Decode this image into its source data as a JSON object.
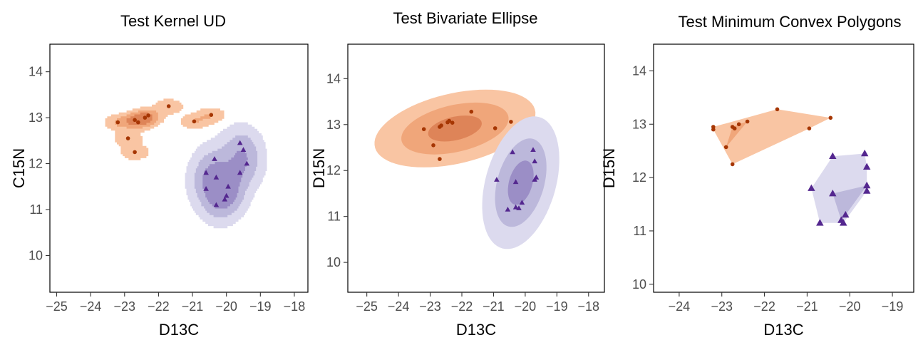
{
  "colors": {
    "orange_light": "#f9c5a3",
    "orange_mid": "#f0a67a",
    "orange_dark": "#de8458",
    "orange_point": "#a63603",
    "purple_light": "#dcdaee",
    "purple_mid": "#bcb8db",
    "purple_dark": "#9b8ec6",
    "purple_point": "#54278f"
  },
  "chart_data": [
    {
      "type": "scatter",
      "title": "Test Kernel UD",
      "xlabel": "D13C",
      "ylabel": "C15N",
      "xlim": [
        -25.2,
        -17.6
      ],
      "ylim": [
        9.2,
        14.6
      ],
      "xticks": [
        -25,
        -24,
        -23,
        -22,
        -21,
        -20,
        -19,
        -18
      ],
      "xtick_labels": [
        "−25",
        "−24",
        "−23",
        "−22",
        "−21",
        "−20",
        "−19",
        "−18"
      ],
      "yticks": [
        10,
        11,
        12,
        13,
        14
      ],
      "ytick_labels": [
        "10",
        "11",
        "12",
        "13",
        "14"
      ],
      "overlay": "kernel",
      "series": [
        {
          "marker": "circle",
          "color": "orange",
          "points": [
            [
              -23.2,
              12.9
            ],
            [
              -22.7,
              12.95
            ],
            [
              -22.6,
              12.9
            ],
            [
              -22.4,
              13.0
            ],
            [
              -22.3,
              13.05
            ],
            [
              -21.7,
              13.25
            ],
            [
              -20.95,
              12.92
            ],
            [
              -20.45,
              13.06
            ],
            [
              -22.9,
              12.55
            ],
            [
              -22.7,
              12.25
            ]
          ]
        },
        {
          "marker": "triangle",
          "color": "purple",
          "points": [
            [
              -20.6,
              11.8
            ],
            [
              -20.3,
              11.1
            ],
            [
              -20.35,
              12.1
            ],
            [
              -20.3,
              11.7
            ],
            [
              -19.6,
              12.45
            ],
            [
              -19.5,
              12.3
            ],
            [
              -19.4,
              12.0
            ],
            [
              -19.6,
              11.8
            ],
            [
              -19.95,
              11.5
            ],
            [
              -20.0,
              11.3
            ],
            [
              -20.05,
              11.22
            ],
            [
              -20.6,
              11.45
            ]
          ]
        }
      ]
    },
    {
      "type": "scatter",
      "title": "Test Bivariate Ellipse",
      "xlabel": "D13C",
      "ylabel": "D15N",
      "xlim": [
        -25.6,
        -17.5
      ],
      "ylim": [
        9.35,
        14.75
      ],
      "xticks": [
        -25,
        -24,
        -23,
        -22,
        -21,
        -20,
        -19,
        -18
      ],
      "xtick_labels": [
        "−25",
        "−24",
        "−23",
        "−22",
        "−21",
        "−20",
        "−19",
        "−18"
      ],
      "yticks": [
        10,
        11,
        12,
        13,
        14
      ],
      "ytick_labels": [
        "10",
        "11",
        "12",
        "13",
        "14"
      ],
      "overlay": "ellipse",
      "series": [
        {
          "marker": "circle",
          "color": "orange",
          "points": [
            [
              -23.2,
              12.9
            ],
            [
              -22.7,
              12.95
            ],
            [
              -22.65,
              12.98
            ],
            [
              -22.45,
              13.05
            ],
            [
              -22.4,
              13.08
            ],
            [
              -22.3,
              13.04
            ],
            [
              -21.7,
              13.28
            ],
            [
              -20.95,
              12.92
            ],
            [
              -20.45,
              13.06
            ],
            [
              -22.9,
              12.55
            ],
            [
              -22.7,
              12.25
            ]
          ]
        },
        {
          "marker": "triangle",
          "color": "purple",
          "points": [
            [
              -20.9,
              11.8
            ],
            [
              -20.55,
              11.15
            ],
            [
              -20.4,
              12.4
            ],
            [
              -20.3,
              11.75
            ],
            [
              -19.75,
              12.45
            ],
            [
              -19.7,
              12.2
            ],
            [
              -19.65,
              11.85
            ],
            [
              -19.7,
              11.8
            ],
            [
              -20.1,
              11.3
            ],
            [
              -20.2,
              11.18
            ],
            [
              -20.3,
              11.2
            ]
          ]
        }
      ]
    },
    {
      "type": "scatter",
      "title": "Test Minimum Convex Polygons",
      "xlabel": "D13C",
      "ylabel": "D15N",
      "xlim": [
        -24.6,
        -18.5
      ],
      "ylim": [
        9.85,
        14.5
      ],
      "xticks": [
        -24,
        -23,
        -22,
        -21,
        -20,
        -19
      ],
      "xtick_labels": [
        "−24",
        "−23",
        "−22",
        "−21",
        "−20",
        "−19"
      ],
      "yticks": [
        10,
        11,
        12,
        13,
        14
      ],
      "ytick_labels": [
        "10",
        "11",
        "12",
        "13",
        "14"
      ],
      "overlay": "polygon",
      "series": [
        {
          "marker": "circle",
          "color": "orange",
          "points": [
            [
              -23.2,
              12.9
            ],
            [
              -23.2,
              12.95
            ],
            [
              -22.75,
              12.95
            ],
            [
              -22.7,
              12.92
            ],
            [
              -22.6,
              13.0
            ],
            [
              -22.4,
              13.05
            ],
            [
              -21.7,
              13.28
            ],
            [
              -20.95,
              12.92
            ],
            [
              -20.45,
              13.12
            ],
            [
              -22.9,
              12.57
            ],
            [
              -22.75,
              12.25
            ]
          ]
        },
        {
          "marker": "triangle",
          "color": "purple",
          "points": [
            [
              -20.9,
              11.8
            ],
            [
              -20.4,
              11.7
            ],
            [
              -20.4,
              12.4
            ],
            [
              -19.65,
              12.45
            ],
            [
              -19.6,
              12.2
            ],
            [
              -19.6,
              11.85
            ],
            [
              -19.6,
              11.75
            ],
            [
              -20.1,
              11.3
            ],
            [
              -20.2,
              11.2
            ],
            [
              -20.15,
              11.15
            ],
            [
              -20.7,
              11.15
            ]
          ]
        }
      ]
    }
  ]
}
